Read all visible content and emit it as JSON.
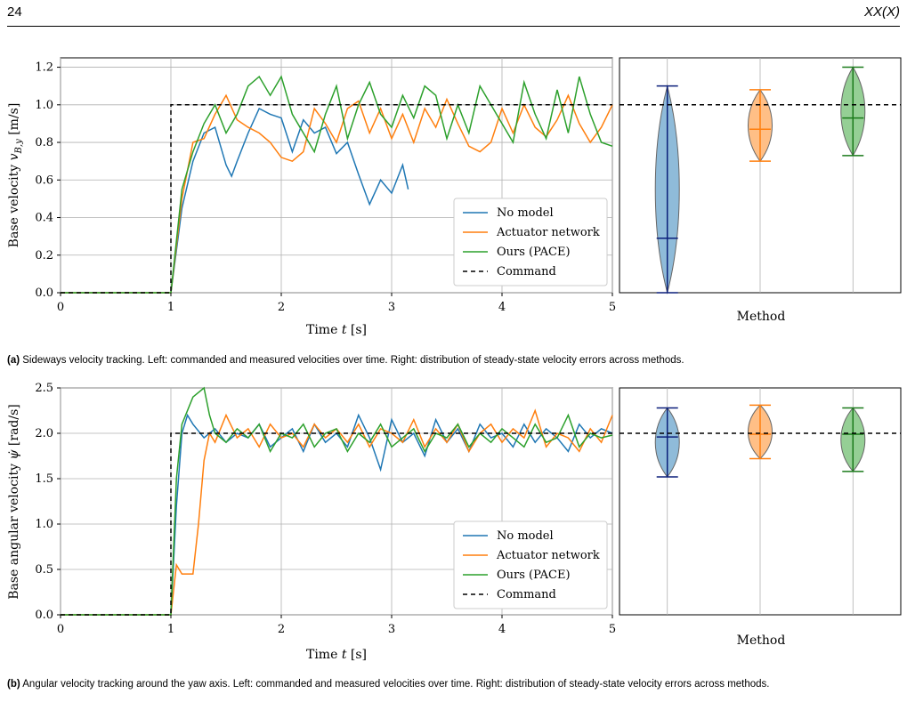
{
  "header": {
    "page_number": "24",
    "journal": "XX(X)"
  },
  "figures": [
    {
      "id": "a",
      "caption_tag": "(a)",
      "caption_text": " Sideways velocity tracking. Left: commanded and measured velocities over time. Right: distribution of steady-state velocity errors across methods.",
      "left_plot": {
        "xlabel": "Time t [s]",
        "ylabel": "Base velocity v_{B,y} [m/s]",
        "xlim": [
          0,
          5
        ],
        "ylim": [
          0,
          1.25
        ],
        "xticks": [
          "0",
          "1",
          "2",
          "3",
          "4",
          "5"
        ],
        "yticks": [
          "0.0",
          "0.2",
          "0.4",
          "0.6",
          "0.8",
          "1.0",
          "1.2"
        ]
      },
      "right_plot": {
        "xlabel": "Method"
      }
    },
    {
      "id": "b",
      "caption_tag": "(b)",
      "caption_text": " Angular velocity tracking around the yaw axis. Left: commanded and measured velocities over time. Right: distribution of steady-state velocity errors across methods.",
      "left_plot": {
        "xlabel": "Time t [s]",
        "ylabel": "Base angular velocity ψ̇ [rad/s]",
        "xlim": [
          0,
          5
        ],
        "ylim": [
          0,
          2.5
        ],
        "xticks": [
          "0",
          "1",
          "2",
          "3",
          "4",
          "5"
        ],
        "yticks": [
          "0.0",
          "0.5",
          "1.0",
          "1.5",
          "2.0",
          "2.5"
        ]
      },
      "right_plot": {
        "xlabel": "Method"
      }
    }
  ],
  "legend": [
    "No model",
    "Actuator network",
    "Ours (PACE)",
    "Command"
  ],
  "colors": {
    "no_model": "#1f77b4",
    "actuator": "#ff7f0e",
    "pace": "#2ca02c",
    "command": "#000000"
  },
  "chart_data": [
    {
      "type": "line",
      "series": [
        {
          "name": "No model",
          "x": [
            0,
            1,
            1.1,
            1.2,
            1.3,
            1.4,
            1.5,
            1.55,
            1.6,
            1.7,
            1.8,
            1.9,
            2.0,
            2.1,
            2.2,
            2.3,
            2.4,
            2.5,
            2.6,
            2.7,
            2.8,
            2.9,
            3.0,
            3.1,
            3.15
          ],
          "y": [
            0,
            0,
            0.45,
            0.7,
            0.85,
            0.88,
            0.68,
            0.62,
            0.7,
            0.85,
            0.98,
            0.95,
            0.93,
            0.75,
            0.92,
            0.85,
            0.88,
            0.74,
            0.8,
            0.63,
            0.47,
            0.6,
            0.53,
            0.68,
            0.55
          ]
        },
        {
          "name": "Actuator network",
          "x": [
            0,
            1,
            1.1,
            1.2,
            1.3,
            1.4,
            1.5,
            1.6,
            1.7,
            1.8,
            1.9,
            2.0,
            2.1,
            2.2,
            2.3,
            2.4,
            2.5,
            2.6,
            2.7,
            2.8,
            2.9,
            3.0,
            3.1,
            3.2,
            3.3,
            3.4,
            3.5,
            3.6,
            3.7,
            3.8,
            3.9,
            4.0,
            4.1,
            4.2,
            4.3,
            4.4,
            4.5,
            4.6,
            4.7,
            4.8,
            4.9,
            5.0
          ],
          "y": [
            0,
            0,
            0.5,
            0.8,
            0.82,
            0.95,
            1.05,
            0.92,
            0.88,
            0.85,
            0.8,
            0.72,
            0.7,
            0.75,
            0.98,
            0.9,
            0.8,
            0.98,
            1.02,
            0.85,
            0.98,
            0.82,
            0.95,
            0.8,
            0.98,
            0.88,
            1.03,
            0.9,
            0.78,
            0.75,
            0.8,
            0.98,
            0.85,
            1.0,
            0.88,
            0.83,
            0.92,
            1.05,
            0.9,
            0.8,
            0.88,
            1.0
          ]
        },
        {
          "name": "Ours (PACE)",
          "x": [
            0,
            1,
            1.1,
            1.2,
            1.3,
            1.4,
            1.5,
            1.6,
            1.7,
            1.8,
            1.9,
            2.0,
            2.1,
            2.2,
            2.3,
            2.4,
            2.5,
            2.6,
            2.7,
            2.8,
            2.9,
            3.0,
            3.1,
            3.2,
            3.3,
            3.4,
            3.5,
            3.6,
            3.7,
            3.8,
            3.9,
            4.0,
            4.1,
            4.2,
            4.3,
            4.4,
            4.5,
            4.6,
            4.7,
            4.8,
            4.9,
            5.0
          ],
          "y": [
            0,
            0,
            0.55,
            0.75,
            0.9,
            1.0,
            0.85,
            0.95,
            1.1,
            1.15,
            1.05,
            1.15,
            0.95,
            0.85,
            0.75,
            0.95,
            1.1,
            0.82,
            1.0,
            1.12,
            0.95,
            0.88,
            1.05,
            0.93,
            1.1,
            1.05,
            0.82,
            1.0,
            0.85,
            1.1,
            1.0,
            0.9,
            0.8,
            1.12,
            0.95,
            0.82,
            1.08,
            0.85,
            1.15,
            0.95,
            0.8,
            0.78
          ]
        },
        {
          "name": "Command",
          "x": [
            0,
            1,
            1,
            5
          ],
          "y": [
            0,
            0,
            1.0,
            1.0
          ]
        }
      ]
    },
    {
      "type": "violin",
      "categories": [
        "No model",
        "Actuator network",
        "Ours (PACE)"
      ],
      "medians": [
        0.29,
        0.87,
        0.93
      ],
      "mins": [
        0.0,
        0.7,
        0.73
      ],
      "maxs": [
        1.1,
        1.08,
        1.2
      ]
    },
    {
      "type": "line",
      "series": [
        {
          "name": "No model",
          "x": [
            0,
            1,
            1.05,
            1.1,
            1.15,
            1.2,
            1.3,
            1.4,
            1.5,
            1.6,
            1.7,
            1.8,
            1.9,
            2.0,
            2.1,
            2.2,
            2.3,
            2.4,
            2.5,
            2.6,
            2.7,
            2.8,
            2.9,
            3.0,
            3.1,
            3.2,
            3.3,
            3.4,
            3.5,
            3.6,
            3.7,
            3.8,
            3.9,
            4.0,
            4.1,
            4.2,
            4.3,
            4.4,
            4.5,
            4.6,
            4.7,
            4.8,
            4.9,
            5.0
          ],
          "y": [
            0,
            0,
            1.2,
            2.0,
            2.2,
            2.1,
            1.95,
            2.05,
            1.9,
            2.0,
            1.95,
            2.1,
            1.85,
            1.95,
            2.05,
            1.8,
            2.1,
            1.9,
            2.0,
            1.85,
            2.2,
            1.95,
            1.6,
            2.15,
            1.9,
            2.0,
            1.75,
            2.15,
            1.9,
            2.05,
            1.8,
            2.1,
            1.95,
            2.0,
            1.85,
            2.1,
            1.9,
            2.05,
            1.95,
            1.8,
            2.1,
            1.95,
            2.05,
            2.0
          ]
        },
        {
          "name": "Actuator network",
          "x": [
            0,
            1,
            1.05,
            1.1,
            1.2,
            1.25,
            1.3,
            1.35,
            1.4,
            1.5,
            1.6,
            1.7,
            1.8,
            1.9,
            2.0,
            2.1,
            2.2,
            2.3,
            2.4,
            2.5,
            2.6,
            2.7,
            2.8,
            2.9,
            3.0,
            3.1,
            3.2,
            3.3,
            3.4,
            3.5,
            3.6,
            3.7,
            3.8,
            3.9,
            4.0,
            4.1,
            4.2,
            4.3,
            4.4,
            4.5,
            4.6,
            4.7,
            4.8,
            4.9,
            5.0
          ],
          "y": [
            0,
            0,
            0.55,
            0.45,
            0.45,
            1.0,
            1.7,
            2.0,
            1.9,
            2.2,
            1.95,
            2.05,
            1.85,
            2.1,
            1.95,
            2.0,
            1.85,
            2.1,
            1.95,
            2.05,
            1.9,
            2.1,
            1.85,
            2.05,
            2.0,
            1.9,
            2.15,
            1.85,
            2.05,
            1.9,
            2.1,
            1.8,
            2.0,
            2.1,
            1.9,
            2.05,
            1.95,
            2.25,
            1.85,
            2.0,
            1.95,
            1.8,
            2.05,
            1.9,
            2.2
          ]
        },
        {
          "name": "Ours (PACE)",
          "x": [
            0,
            1,
            1.05,
            1.1,
            1.2,
            1.3,
            1.35,
            1.4,
            1.5,
            1.6,
            1.7,
            1.8,
            1.9,
            2.0,
            2.1,
            2.2,
            2.3,
            2.4,
            2.5,
            2.6,
            2.7,
            2.8,
            2.9,
            3.0,
            3.1,
            3.2,
            3.3,
            3.4,
            3.5,
            3.6,
            3.7,
            3.8,
            3.9,
            4.0,
            4.1,
            4.2,
            4.3,
            4.4,
            4.5,
            4.6,
            4.7,
            4.8,
            4.9,
            5.0
          ],
          "y": [
            0,
            0,
            1.5,
            2.1,
            2.4,
            2.5,
            2.2,
            2.0,
            1.9,
            2.05,
            1.95,
            2.1,
            1.8,
            2.0,
            1.95,
            2.1,
            1.85,
            2.0,
            2.05,
            1.8,
            2.0,
            1.9,
            2.1,
            1.85,
            1.95,
            2.05,
            1.8,
            2.0,
            1.95,
            2.1,
            1.85,
            2.0,
            1.9,
            2.05,
            1.95,
            1.85,
            2.1,
            1.9,
            1.95,
            2.2,
            1.85,
            2.0,
            1.95,
            1.98
          ]
        },
        {
          "name": "Command",
          "x": [
            0,
            1,
            1,
            5
          ],
          "y": [
            0,
            0,
            2.0,
            2.0
          ]
        }
      ]
    },
    {
      "type": "violin",
      "categories": [
        "No model",
        "Actuator network",
        "Ours (PACE)"
      ],
      "medians": [
        1.96,
        1.99,
        1.99
      ],
      "mins": [
        1.52,
        1.72,
        1.58
      ],
      "maxs": [
        2.28,
        2.31,
        2.28
      ]
    }
  ]
}
